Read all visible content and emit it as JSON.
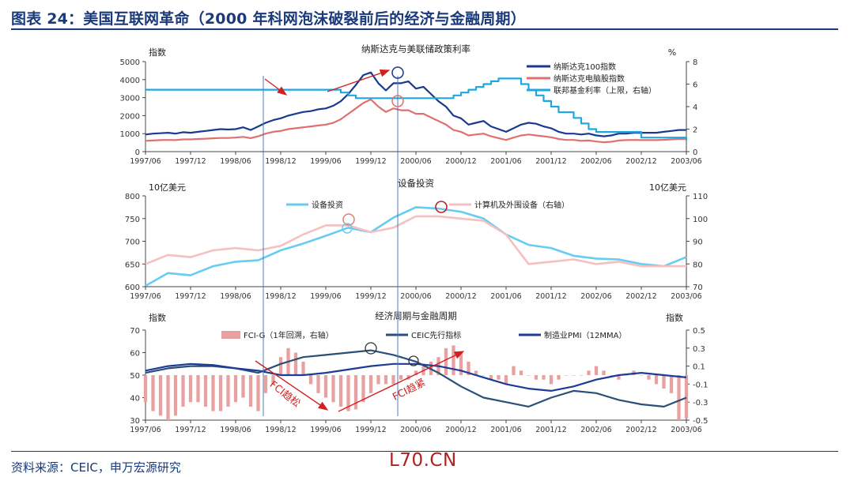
{
  "header": {
    "title": "图表 24：美国互联网革命（2000 年科网泡沫破裂前后的经济与金融周期）"
  },
  "footer": {
    "source": "资料来源：CEIC，申万宏源研究",
    "watermark": "L70.CN"
  },
  "colors": {
    "accent": "#1a3a7a",
    "nasdaq": "#1a3a8f",
    "computer": "#e07070",
    "fed": "#1fa8e0",
    "equipment": "#66ccf2",
    "computer_periph": "#f5c0c0",
    "fci": "#e8a0a0",
    "ceic": "#2a4f78",
    "pmi": "#1e3c96",
    "annotation_red": "#d02020",
    "vline": "#4a7cc0"
  },
  "chart_data": [
    {
      "type": "line",
      "title": "纳斯达克与美联储政策利率",
      "ylabel_left": "指数",
      "ylabel_right": "%",
      "x_ticks": [
        "1997/06",
        "1997/12",
        "1998/06",
        "1998/12",
        "1999/06",
        "1999/12",
        "2000/06",
        "2000/12",
        "2001/06",
        "2001/12",
        "2002/06",
        "2002/12",
        "2003/06"
      ],
      "ylim": [
        0,
        5000
      ],
      "yticks": [
        0,
        1000,
        2000,
        3000,
        4000,
        5000
      ],
      "ylim_right": [
        0,
        8
      ],
      "yticks_right": [
        0,
        2,
        4,
        6,
        8
      ],
      "legend_position": "top-right",
      "series": [
        {
          "name": "纳斯达克100指数",
          "axis": "left",
          "color": "nasdaq",
          "x": [
            0,
            1,
            2,
            3,
            4,
            5,
            6,
            7,
            8,
            9,
            10,
            11,
            12,
            13,
            14,
            15,
            16,
            17,
            18,
            19,
            20,
            21,
            22,
            23,
            24,
            25,
            26,
            27,
            28,
            29,
            30,
            31,
            32,
            33,
            34,
            35,
            36,
            37,
            38,
            39,
            40,
            41,
            42,
            43,
            44,
            45,
            46,
            47,
            48,
            49,
            50,
            51,
            52,
            53,
            54,
            55,
            56,
            57,
            58,
            59,
            60,
            61,
            62,
            63,
            64,
            65,
            66,
            67,
            68,
            69,
            70,
            71,
            72
          ],
          "values": [
            950,
            1000,
            1020,
            1050,
            1000,
            1080,
            1050,
            1100,
            1150,
            1200,
            1250,
            1230,
            1250,
            1350,
            1200,
            1400,
            1600,
            1750,
            1850,
            2000,
            2100,
            2200,
            2250,
            2350,
            2400,
            2550,
            2800,
            3200,
            3700,
            4250,
            4400,
            3800,
            3400,
            3800,
            3800,
            3900,
            3500,
            3600,
            3200,
            2800,
            2500,
            2000,
            1850,
            1500,
            1600,
            1700,
            1400,
            1250,
            1100,
            1300,
            1500,
            1600,
            1550,
            1400,
            1300,
            1100,
            1000,
            1000,
            950,
            1000,
            900,
            850,
            900,
            1000,
            1000,
            1050,
            1050,
            1050,
            1050,
            1100,
            1150,
            1200,
            1200
          ]
        },
        {
          "name": "纳斯达克电脑股指数",
          "axis": "left",
          "color": "computer",
          "x": [
            0,
            1,
            2,
            3,
            4,
            5,
            6,
            7,
            8,
            9,
            10,
            11,
            12,
            13,
            14,
            15,
            16,
            17,
            18,
            19,
            20,
            21,
            22,
            23,
            24,
            25,
            26,
            27,
            28,
            29,
            30,
            31,
            32,
            33,
            34,
            35,
            36,
            37,
            38,
            39,
            40,
            41,
            42,
            43,
            44,
            45,
            46,
            47,
            48,
            49,
            50,
            51,
            52,
            53,
            54,
            55,
            56,
            57,
            58,
            59,
            60,
            61,
            62,
            63,
            64,
            65,
            66,
            67,
            68,
            69,
            70,
            71,
            72
          ],
          "values": [
            600,
            620,
            640,
            650,
            640,
            680,
            680,
            700,
            720,
            740,
            760,
            760,
            780,
            820,
            750,
            850,
            1000,
            1100,
            1150,
            1250,
            1300,
            1350,
            1400,
            1450,
            1500,
            1600,
            1800,
            2100,
            2400,
            2700,
            2900,
            2500,
            2200,
            2400,
            2300,
            2300,
            2100,
            2100,
            1900,
            1700,
            1500,
            1200,
            1100,
            900,
            950,
            1000,
            850,
            750,
            650,
            780,
            900,
            950,
            900,
            850,
            800,
            700,
            650,
            650,
            600,
            620,
            560,
            520,
            550,
            620,
            640,
            650,
            640,
            640,
            640,
            660,
            680,
            700,
            700
          ]
        },
        {
          "name": "联邦基金利率（上限，右轴）",
          "axis": "right",
          "color": "fed",
          "step": true,
          "x": [
            0,
            25,
            26,
            27,
            28,
            40,
            41,
            42,
            43,
            44,
            45,
            46,
            47,
            48,
            49,
            50,
            51,
            52,
            53,
            54,
            55,
            57,
            58,
            59,
            60,
            61,
            62,
            63,
            64,
            65,
            66,
            67,
            68,
            72
          ],
          "values": [
            5.5,
            5.5,
            5.25,
            5.0,
            4.75,
            4.75,
            5.0,
            5.25,
            5.5,
            5.75,
            6.0,
            6.25,
            6.5,
            6.5,
            6.5,
            6.0,
            5.5,
            5.0,
            4.5,
            4.0,
            3.5,
            3.0,
            2.5,
            2.0,
            1.75,
            1.75,
            1.75,
            1.75,
            1.75,
            1.75,
            1.25,
            1.25,
            1.25,
            1.0
          ]
        }
      ],
      "annotations": [
        {
          "type": "arrow",
          "label": ""
        },
        {
          "type": "arrow",
          "label": ""
        },
        {
          "type": "circle",
          "label": ""
        },
        {
          "type": "circle",
          "label": ""
        }
      ]
    },
    {
      "type": "line",
      "title": "设备投资",
      "ylabel_left": "10亿美元",
      "ylabel_right": "10亿美元",
      "x_ticks": [
        "1997/06",
        "1997/12",
        "1998/06",
        "1998/12",
        "1999/06",
        "1999/12",
        "2000/06",
        "2000/12",
        "2001/06",
        "2001/12",
        "2002/06",
        "2002/12",
        "2003/06"
      ],
      "ylim": [
        600,
        800
      ],
      "yticks": [
        600,
        650,
        700,
        750,
        800
      ],
      "ylim_right": [
        70,
        110
      ],
      "yticks_right": [
        70,
        80,
        90,
        100,
        110
      ],
      "series": [
        {
          "name": "设备投资",
          "axis": "left",
          "color": "equipment",
          "x": [
            0,
            3,
            6,
            9,
            12,
            15,
            18,
            21,
            24,
            27,
            30,
            33,
            36,
            39,
            42,
            45,
            48,
            51,
            54,
            57,
            60,
            63,
            66,
            69,
            72
          ],
          "values": [
            602,
            630,
            625,
            645,
            655,
            658,
            680,
            695,
            712,
            730,
            720,
            752,
            775,
            772,
            765,
            750,
            715,
            692,
            685,
            668,
            662,
            660,
            650,
            645,
            665
          ]
        },
        {
          "name": "计算机及外围设备（右轴）",
          "axis": "right",
          "color": "computer_periph",
          "x": [
            0,
            3,
            6,
            9,
            12,
            15,
            18,
            21,
            24,
            27,
            30,
            33,
            36,
            39,
            42,
            45,
            48,
            51,
            54,
            57,
            60,
            63,
            66,
            69,
            72
          ],
          "values": [
            80,
            84,
            83,
            86,
            87,
            86,
            88,
            93,
            97,
            97,
            94,
            96,
            101,
            101,
            100,
            99,
            93,
            80,
            81,
            82,
            80,
            81,
            79,
            79,
            79
          ]
        }
      ]
    },
    {
      "type": "line",
      "title": "经济周期与金融周期",
      "ylabel_left": "指数",
      "ylabel_right": "指数",
      "x_ticks": [
        "1997/06",
        "1997/12",
        "1998/06",
        "1998/12",
        "1999/06",
        "1999/12",
        "2000/06",
        "2000/12",
        "2001/06",
        "2001/12",
        "2002/06",
        "2002/12",
        "2003/06"
      ],
      "ylim": [
        30,
        70
      ],
      "yticks": [
        30,
        40,
        50,
        60,
        70
      ],
      "ylim_right": [
        -0.5,
        0.5
      ],
      "yticks_right": [
        -0.5,
        -0.3,
        -0.1,
        0.1,
        0.3,
        0.5
      ],
      "series": [
        {
          "name": "FCI-G（1年回溯，右轴）",
          "axis": "right",
          "color": "fci",
          "bar": true,
          "x": [
            0,
            1,
            2,
            3,
            4,
            5,
            6,
            7,
            8,
            9,
            10,
            11,
            12,
            13,
            14,
            15,
            16,
            17,
            18,
            19,
            20,
            21,
            22,
            23,
            24,
            25,
            26,
            27,
            28,
            29,
            30,
            31,
            32,
            33,
            34,
            35,
            36,
            37,
            38,
            39,
            40,
            41,
            42,
            43,
            44,
            45,
            46,
            47,
            48,
            49,
            50,
            51,
            52,
            53,
            54,
            55,
            56,
            57,
            58,
            59,
            60,
            61,
            62,
            63,
            64,
            65,
            66,
            67,
            68,
            69,
            70,
            71,
            72
          ],
          "values": [
            -0.3,
            -0.4,
            -0.45,
            -0.5,
            -0.45,
            -0.35,
            -0.3,
            -0.3,
            -0.35,
            -0.4,
            -0.4,
            -0.35,
            -0.3,
            -0.25,
            -0.35,
            -0.4,
            -0.2,
            -0.1,
            0.2,
            0.3,
            0.25,
            0.15,
            -0.1,
            -0.2,
            -0.25,
            -0.3,
            -0.35,
            -0.4,
            -0.38,
            -0.3,
            -0.2,
            -0.1,
            -0.1,
            -0.1,
            -0.05,
            -0.05,
            0.05,
            0.1,
            0.15,
            0.2,
            0.3,
            0.33,
            0.25,
            0.15,
            0.05,
            0.0,
            -0.05,
            -0.05,
            -0.1,
            0.1,
            0.05,
            0.0,
            -0.05,
            -0.05,
            -0.1,
            -0.05,
            0.0,
            0.0,
            0.0,
            0.05,
            0.1,
            0.05,
            0.0,
            -0.05,
            0.0,
            0.05,
            0.0,
            -0.05,
            -0.1,
            -0.15,
            -0.2,
            -0.5,
            -0.48
          ]
        },
        {
          "name": "CEIC先行指标",
          "axis": "left",
          "color": "ceic",
          "x": [
            0,
            3,
            6,
            9,
            12,
            15,
            18,
            21,
            24,
            27,
            30,
            33,
            36,
            39,
            42,
            45,
            48,
            51,
            54,
            57,
            60,
            63,
            66,
            69,
            72
          ],
          "values": [
            51,
            53,
            54,
            54,
            53,
            51,
            55,
            58,
            59,
            60,
            61,
            59,
            56,
            51,
            45,
            40,
            38,
            36,
            40,
            43,
            42,
            39,
            37,
            36,
            40
          ]
        },
        {
          "name": "制造业PMI（12MMA）",
          "axis": "left",
          "color": "pmi",
          "x": [
            0,
            3,
            6,
            9,
            12,
            15,
            18,
            21,
            24,
            27,
            30,
            33,
            36,
            39,
            42,
            45,
            48,
            51,
            54,
            57,
            60,
            63,
            66,
            69,
            72
          ],
          "values": [
            52,
            54,
            55,
            54.5,
            53,
            52,
            50,
            50,
            51,
            52.5,
            54,
            55,
            55,
            54,
            52,
            49,
            46,
            44,
            43,
            45,
            48,
            50,
            51,
            50,
            49
          ]
        }
      ],
      "annotations": [
        {
          "type": "arrow",
          "label": "FCI趋松"
        },
        {
          "type": "arrow",
          "label": "FCI趋紧"
        },
        {
          "type": "circle",
          "label": ""
        },
        {
          "type": "circle",
          "label": ""
        }
      ]
    }
  ]
}
